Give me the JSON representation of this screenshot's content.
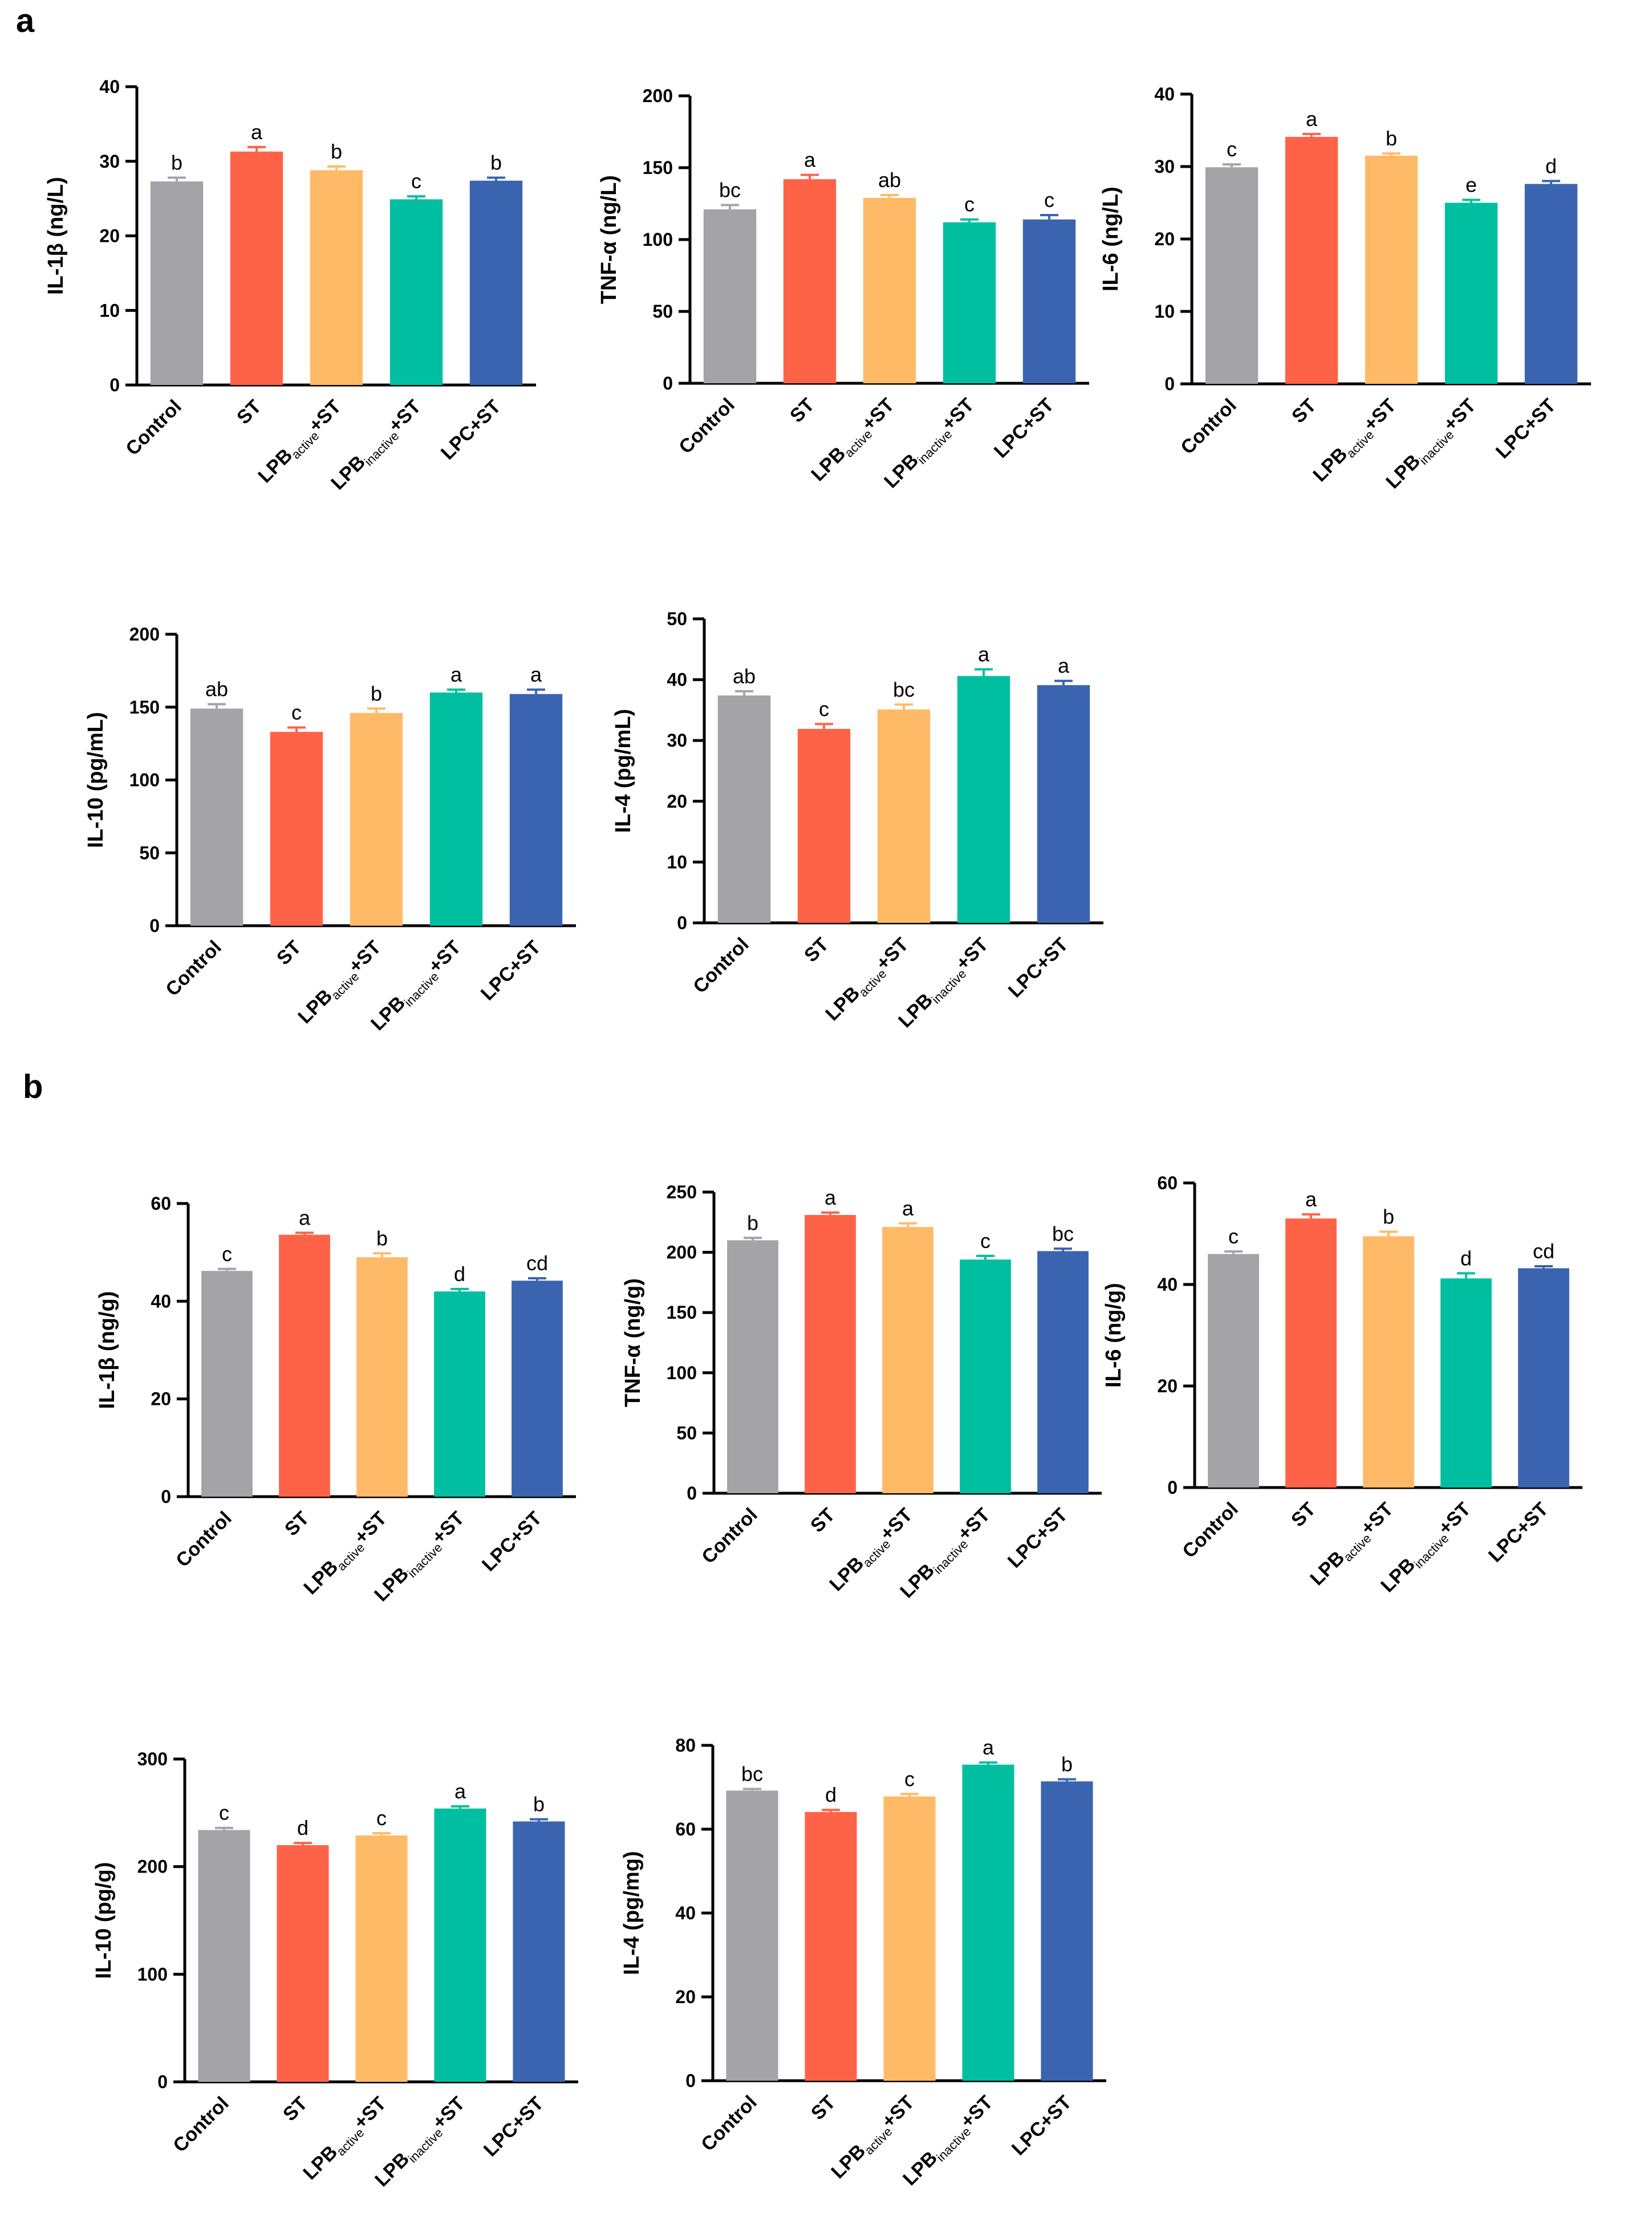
{
  "panels": [
    {
      "letter": "a"
    },
    {
      "letter": "b"
    }
  ],
  "colors": {
    "Control": "#A3A3A8",
    "ST": "#FF6347",
    "LPB_active+ST": "#FFBA68",
    "LPB_inactive+ST": "#00BFA0",
    "LPC+ST": "#3A64AF"
  },
  "categories": [
    {
      "parts": [
        "Control"
      ]
    },
    {
      "parts": [
        "ST"
      ]
    },
    {
      "parts": [
        "LPB",
        "active",
        "+ST"
      ]
    },
    {
      "parts": [
        "LPB",
        "inactive",
        "+ST"
      ]
    },
    {
      "parts": [
        "LPC+ST"
      ]
    }
  ],
  "chart_data": [
    {
      "type": "bar",
      "panel": "a",
      "ylabel": "IL-1β (ng/L)",
      "ylim": [
        0,
        40
      ],
      "yticks": [
        0,
        10,
        20,
        30,
        40
      ],
      "categories": [
        "Control",
        "ST",
        "LPBactive+ST",
        "LPBinactive+ST",
        "LPC+ST"
      ],
      "values": [
        27.3,
        31.3,
        28.8,
        24.9,
        27.4
      ],
      "errors": [
        0.5,
        0.6,
        0.5,
        0.4,
        0.4
      ],
      "letters": [
        "b",
        "a",
        "b",
        "c",
        "b"
      ]
    },
    {
      "type": "bar",
      "panel": "a",
      "ylabel": "TNF-α (ng/L)",
      "ylim": [
        0,
        200
      ],
      "yticks": [
        0,
        50,
        100,
        150,
        200
      ],
      "categories": [
        "Control",
        "ST",
        "LPBactive+ST",
        "LPBinactive+ST",
        "LPC+ST"
      ],
      "values": [
        121,
        142,
        129,
        112,
        114
      ],
      "errors": [
        3,
        3,
        2,
        2,
        3
      ],
      "letters": [
        "bc",
        "a",
        "ab",
        "c",
        "c"
      ]
    },
    {
      "type": "bar",
      "panel": "a",
      "ylabel": "IL-6 (ng/L)",
      "ylim": [
        0,
        40
      ],
      "yticks": [
        0,
        10,
        20,
        30,
        40
      ],
      "categories": [
        "Control",
        "ST",
        "LPBactive+ST",
        "LPBinactive+ST",
        "LPC+ST"
      ],
      "values": [
        29.9,
        34.1,
        31.5,
        25.0,
        27.6
      ],
      "errors": [
        0.4,
        0.4,
        0.3,
        0.4,
        0.4
      ],
      "letters": [
        "c",
        "a",
        "b",
        "e",
        "d"
      ]
    },
    {
      "type": "bar",
      "panel": "a",
      "ylabel": "IL-10 (pg/mL)",
      "ylim": [
        0,
        200
      ],
      "yticks": [
        0,
        50,
        100,
        150,
        200
      ],
      "categories": [
        "Control",
        "ST",
        "LPBactive+ST",
        "LPBinactive+ST",
        "LPC+ST"
      ],
      "values": [
        149,
        133,
        146,
        160,
        159
      ],
      "errors": [
        3,
        3,
        3,
        2,
        3
      ],
      "letters": [
        "ab",
        "c",
        "b",
        "a",
        "a"
      ]
    },
    {
      "type": "bar",
      "panel": "a",
      "ylabel": "IL-4 (pg/mL)",
      "ylim": [
        0,
        50
      ],
      "yticks": [
        0,
        10,
        20,
        30,
        40,
        50
      ],
      "categories": [
        "Control",
        "ST",
        "LPBactive+ST",
        "LPBinactive+ST",
        "LPC+ST"
      ],
      "values": [
        37.4,
        31.9,
        35.1,
        40.6,
        39.1
      ],
      "errors": [
        0.7,
        0.8,
        0.8,
        1.1,
        0.7
      ],
      "letters": [
        "ab",
        "c",
        "bc",
        "a",
        "a"
      ]
    },
    {
      "type": "bar",
      "panel": "b",
      "ylabel": "IL-1β (ng/g)",
      "ylim": [
        0,
        60
      ],
      "yticks": [
        0,
        20,
        40,
        60
      ],
      "categories": [
        "Control",
        "ST",
        "LPBactive+ST",
        "LPBinactive+ST",
        "LPC+ST"
      ],
      "values": [
        46.2,
        53.6,
        49.0,
        42.0,
        44.2
      ],
      "errors": [
        0.4,
        0.4,
        0.8,
        0.5,
        0.5
      ],
      "letters": [
        "c",
        "a",
        "b",
        "d",
        "cd"
      ]
    },
    {
      "type": "bar",
      "panel": "b",
      "ylabel": "TNF-α (ng/g)",
      "ylim": [
        0,
        250
      ],
      "yticks": [
        0,
        50,
        100,
        150,
        200,
        250
      ],
      "categories": [
        "Control",
        "ST",
        "LPBactive+ST",
        "LPBinactive+ST",
        "LPC+ST"
      ],
      "values": [
        210,
        231,
        221,
        194,
        201
      ],
      "errors": [
        2,
        2,
        3,
        3,
        2
      ],
      "letters": [
        "b",
        "a",
        "a",
        "c",
        "bc"
      ]
    },
    {
      "type": "bar",
      "panel": "b",
      "ylabel": "IL-6 (ng/g)",
      "ylim": [
        0,
        60
      ],
      "yticks": [
        0,
        20,
        40,
        60
      ],
      "categories": [
        "Control",
        "ST",
        "LPBactive+ST",
        "LPBinactive+ST",
        "LPC+ST"
      ],
      "values": [
        46.0,
        53.0,
        49.5,
        41.2,
        43.2
      ],
      "errors": [
        0.5,
        0.8,
        0.9,
        1.0,
        0.4
      ],
      "letters": [
        "c",
        "a",
        "b",
        "d",
        "cd"
      ]
    },
    {
      "type": "bar",
      "panel": "b",
      "ylabel": "IL-10 (pg/g)",
      "ylim": [
        0,
        300
      ],
      "yticks": [
        0,
        100,
        200,
        300
      ],
      "categories": [
        "Control",
        "ST",
        "LPBactive+ST",
        "LPBinactive+ST",
        "LPC+ST"
      ],
      "values": [
        234,
        220,
        229,
        254,
        242
      ],
      "errors": [
        2,
        2,
        2,
        2,
        2
      ],
      "letters": [
        "c",
        "d",
        "c",
        "a",
        "b"
      ]
    },
    {
      "type": "bar",
      "panel": "b",
      "ylabel": "IL-4 (pg/mg)",
      "ylim": [
        0,
        80
      ],
      "yticks": [
        0,
        20,
        40,
        60,
        80
      ],
      "categories": [
        "Control",
        "ST",
        "LPBactive+ST",
        "LPBinactive+ST",
        "LPC+ST"
      ],
      "values": [
        69.2,
        64.1,
        67.8,
        75.4,
        71.4
      ],
      "errors": [
        0.4,
        0.5,
        0.6,
        0.5,
        0.5
      ],
      "letters": [
        "bc",
        "d",
        "c",
        "a",
        "b"
      ]
    }
  ]
}
